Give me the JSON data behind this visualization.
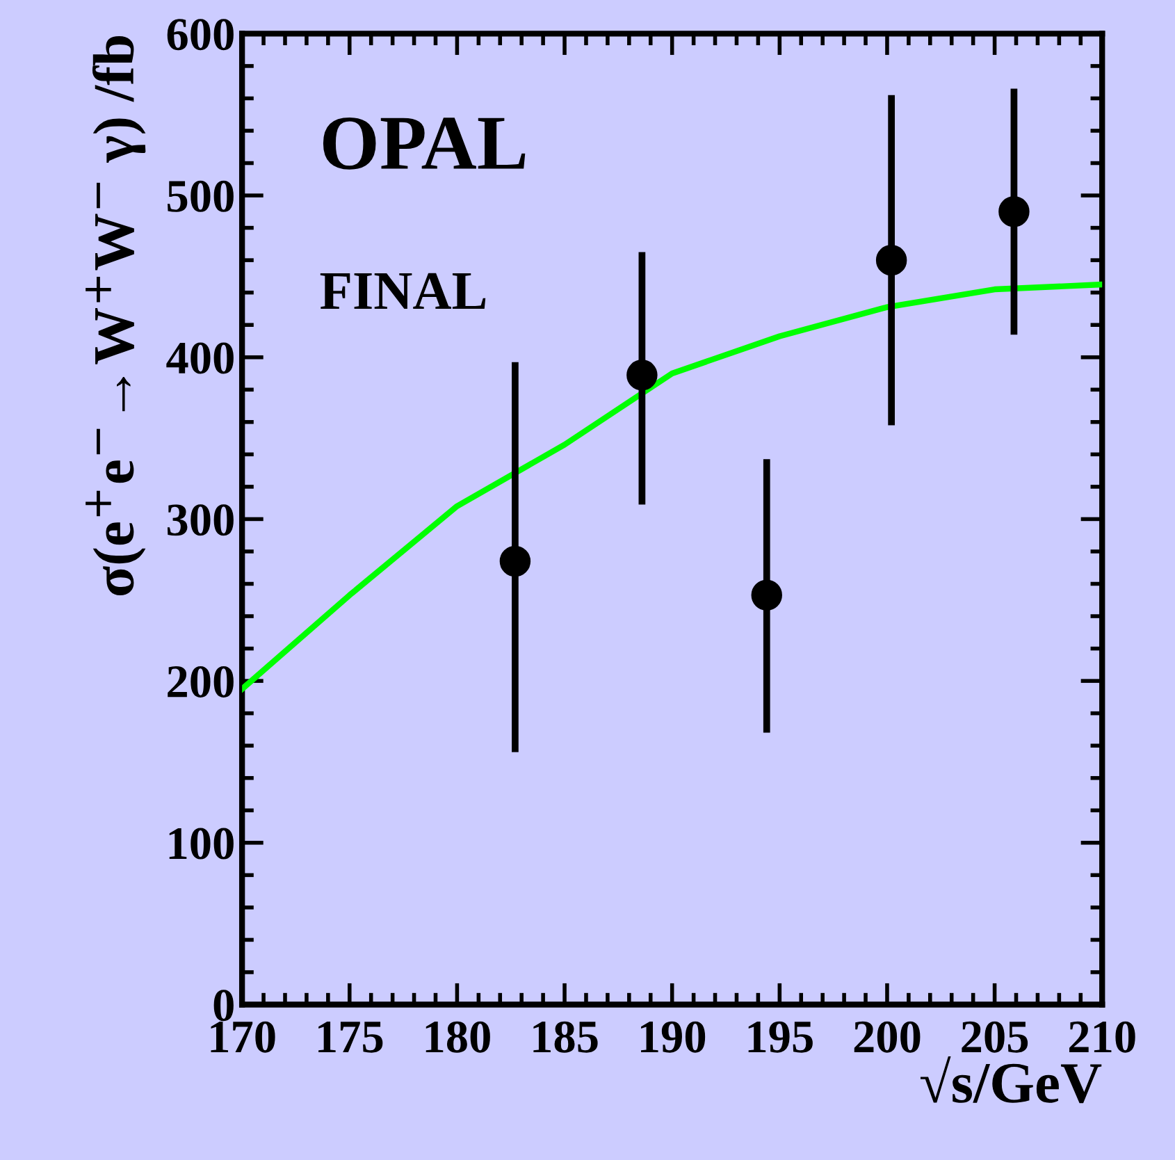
{
  "chart_data": {
    "type": "scatter",
    "xlabel": "√s/GeV",
    "ylabel": "σ(e$^{+}$e$^{−}$→W$^{+}$W$^{−}$ γ) /fb",
    "annotations": [
      "OPAL",
      "FINAL"
    ],
    "series": [
      {
        "color": "#000000",
        "marker": "circle",
        "x": [
          182.7,
          188.6,
          194.4,
          200.2,
          205.9
        ],
        "values": [
          274,
          389,
          253,
          460,
          490
        ],
        "errors": [
          [
            156,
            397
          ],
          [
            309,
            465
          ],
          [
            168,
            337
          ],
          [
            358,
            562
          ],
          [
            414,
            566
          ]
        ]
      },
      {
        "type": "line",
        "color": "#00ff00",
        "marker": "none",
        "line_style": "solid",
        "x": [
          170,
          175,
          180,
          185,
          190,
          195,
          200,
          205,
          210
        ],
        "values": [
          195,
          253,
          308,
          346,
          390,
          413,
          431,
          442,
          445
        ]
      }
    ],
    "xlim": [
      170,
      210
    ],
    "xticks": [
      170,
      175,
      180,
      185,
      190,
      195,
      200,
      205,
      210
    ],
    "ylim": [
      0,
      600
    ],
    "yticks": [
      0,
      100,
      200,
      300,
      400,
      500,
      600
    ],
    "grid": false,
    "legend": false
  }
}
